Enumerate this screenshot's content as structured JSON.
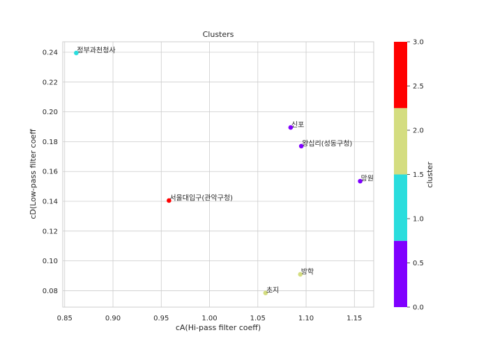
{
  "chart_data": {
    "type": "scatter",
    "title": "Clusters",
    "xlabel": "cA(Hi-pass filter coeff)",
    "ylabel": "cD(Low-pass filter coeff",
    "xlim": [
      0.848,
      1.17
    ],
    "ylim": [
      0.069,
      0.247
    ],
    "xticks": [
      "0.85",
      "0.90",
      "0.95",
      "1.00",
      "1.05",
      "1.10",
      "1.15"
    ],
    "yticks": [
      "0.08",
      "0.10",
      "0.12",
      "0.14",
      "0.16",
      "0.18",
      "0.20",
      "0.22",
      "0.24"
    ],
    "grid": true,
    "points": [
      {
        "label": "정부과천청사",
        "x": 0.862,
        "y": 0.2395,
        "cluster": 1
      },
      {
        "label": "신포",
        "x": 1.084,
        "y": 0.1895,
        "cluster": 0
      },
      {
        "label": "왕십리(성동구청)",
        "x": 1.095,
        "y": 0.177,
        "cluster": 0
      },
      {
        "label": "망원",
        "x": 1.156,
        "y": 0.1535,
        "cluster": 0
      },
      {
        "label": "서울대입구(관악구청)",
        "x": 0.958,
        "y": 0.1405,
        "cluster": 3
      },
      {
        "label": "방학",
        "x": 1.094,
        "y": 0.091,
        "cluster": 2
      },
      {
        "label": "초지",
        "x": 1.058,
        "y": 0.0785,
        "cluster": 2
      }
    ],
    "colorbar": {
      "label": "cluster",
      "range": [
        0,
        3
      ],
      "ticks": [
        "0.0",
        "0.5",
        "1.0",
        "1.5",
        "2.0",
        "2.5",
        "3.0"
      ],
      "colors": [
        "#8000ff",
        "#2adddd",
        "#d4dd80",
        "#ff0000"
      ]
    }
  }
}
